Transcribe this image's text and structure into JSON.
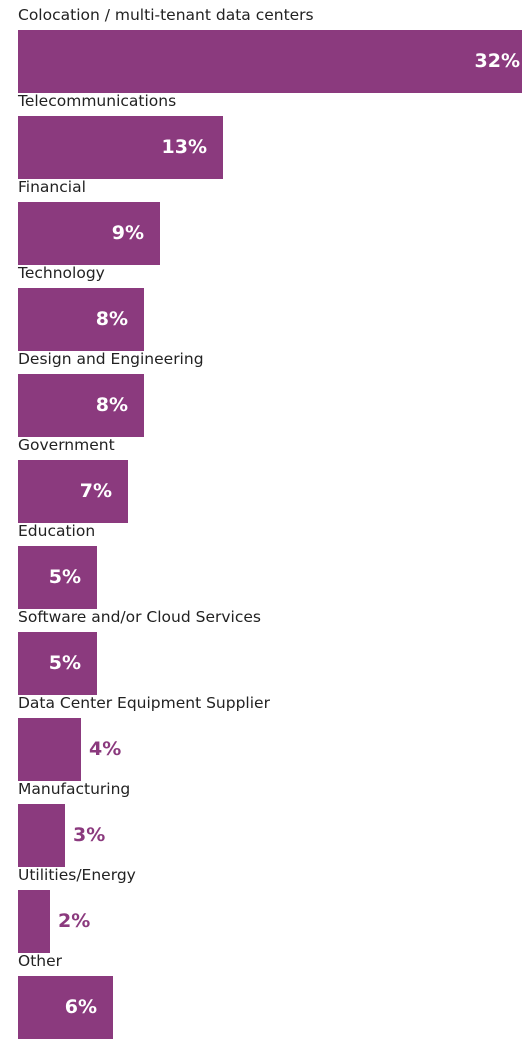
{
  "chart_data": {
    "type": "bar",
    "orientation": "horizontal",
    "categories": [
      "Colocation / multi-tenant data centers",
      "Telecommunications",
      "Financial",
      "Technology",
      "Design and Engineering",
      "Government",
      "Education",
      "Software and/or Cloud Services",
      "Data Center Equipment Supplier",
      "Manufacturing",
      "Utilities/Energy",
      "Other"
    ],
    "values": [
      32,
      13,
      9,
      8,
      8,
      7,
      5,
      5,
      4,
      3,
      2,
      6
    ],
    "value_labels": [
      "32%",
      "13%",
      "9%",
      "8%",
      "8%",
      "7%",
      "5%",
      "5%",
      "4%",
      "3%",
      "2%",
      "6%"
    ],
    "unit": "%",
    "title": "",
    "xlabel": "",
    "ylabel": "",
    "xlim": [
      0,
      32
    ],
    "grid": false,
    "legend": "none",
    "colors": {
      "bar": "#8b3a7e",
      "label_inside": "#ffffff",
      "label_outside": "#8b3a7e",
      "category_text": "#222222"
    }
  }
}
